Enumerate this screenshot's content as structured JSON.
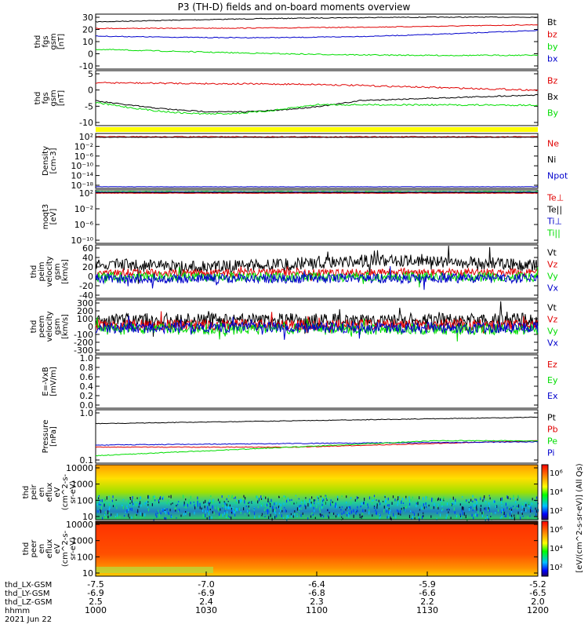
{
  "colors": {
    "black": "#000000",
    "red": "#e00000",
    "green": "#00dd00",
    "blue": "#0000cc",
    "yellow": "#ffff00"
  },
  "chart_data": {
    "type": "line",
    "title": "P3 (TH-D) fields and on-board moments overview",
    "date": "2021 Jun 22",
    "x_axis": {
      "rows": [
        {
          "label": "thd_LX-GSM",
          "values": [
            "-7.5",
            "-7.0",
            "-6.4",
            "-5.9",
            "-5.2"
          ]
        },
        {
          "label": "thd_LY-GSM",
          "values": [
            "-6.9",
            "-6.9",
            "-6.8",
            "-6.6",
            "-6.5"
          ]
        },
        {
          "label": "thd_LZ-GSM",
          "values": [
            "2.5",
            "2.4",
            "2.3",
            "2.2",
            "2.0"
          ]
        },
        {
          "label": "hhmm",
          "values": [
            "1000",
            "1030",
            "1100",
            "1130",
            "1200"
          ]
        }
      ]
    },
    "colorbar_label": "[eV/(cm^2-s-sr-eV)] (All Qs)",
    "panels": [
      {
        "ylabel": [
          "thd",
          "fgs",
          "gsm",
          "[nT]"
        ],
        "yticks": [
          "30",
          "20",
          "10",
          "0",
          "-10"
        ],
        "legend": [
          {
            "name": "Bt",
            "color": "#000000"
          },
          {
            "name": "bz",
            "color": "#e00000"
          },
          {
            "name": "by",
            "color": "#00dd00"
          },
          {
            "name": "bx",
            "color": "#0000cc"
          }
        ]
      },
      {
        "ylabel": [
          "thd",
          "fgs",
          "gsm",
          "[nT]"
        ],
        "yticks": [
          "5",
          "0",
          "-5",
          "-10"
        ],
        "legend": [
          {
            "name": "Bz",
            "color": "#e00000"
          },
          {
            "name": "Bx",
            "color": "#000000"
          },
          {
            "name": "By",
            "color": "#00dd00"
          }
        ]
      },
      {
        "ylabel": [
          "Density",
          "[cm-3]"
        ],
        "yticks": [
          "10²",
          "10⁻²",
          "10⁻⁶",
          "10⁻¹⁰",
          "10⁻¹⁴",
          "10⁻¹⁸"
        ],
        "legend": [
          {
            "name": "Ne",
            "color": "#e00000"
          },
          {
            "name": "Ni",
            "color": "#000000"
          },
          {
            "name": "Npot",
            "color": "#0000cc"
          }
        ]
      },
      {
        "ylabel": [
          "moqt3",
          "[eV]"
        ],
        "yticks": [
          "10²",
          "10⁻²",
          "10⁻⁶",
          "10⁻¹⁰"
        ],
        "legend": [
          {
            "name": "Te⊥",
            "color": "#e00000"
          },
          {
            "name": "Te||",
            "color": "#000000"
          },
          {
            "name": "Ti⊥",
            "color": "#0000cc"
          },
          {
            "name": "Ti||",
            "color": "#00dd00"
          }
        ]
      },
      {
        "ylabel": [
          "thd",
          "peim",
          "velocity",
          "gsm",
          "[km/s]"
        ],
        "yticks": [
          "60",
          "40",
          "20",
          "0",
          "-20",
          "-40"
        ],
        "legend": [
          {
            "name": "Vt",
            "color": "#000000"
          },
          {
            "name": "Vz",
            "color": "#e00000"
          },
          {
            "name": "Vy",
            "color": "#00dd00"
          },
          {
            "name": "Vx",
            "color": "#0000cc"
          }
        ]
      },
      {
        "ylabel": [
          "thd",
          "peem",
          "velocity",
          "gsm",
          "[km/s]"
        ],
        "yticks": [
          "300",
          "200",
          "100",
          "0",
          "-100",
          "-200",
          "-300"
        ],
        "legend": [
          {
            "name": "Vt",
            "color": "#000000"
          },
          {
            "name": "Vz",
            "color": "#e00000"
          },
          {
            "name": "Vy",
            "color": "#00dd00"
          },
          {
            "name": "Vx",
            "color": "#0000cc"
          }
        ]
      },
      {
        "ylabel": [
          "E=-VxB",
          "[mV/m]"
        ],
        "yticks": [
          "1.0",
          "0.8",
          "0.6",
          "0.4",
          "0.2",
          "0.0"
        ],
        "legend": [
          {
            "name": "Ez",
            "color": "#e00000"
          },
          {
            "name": "Ey",
            "color": "#00dd00"
          },
          {
            "name": "Ex",
            "color": "#0000cc"
          }
        ]
      },
      {
        "ylabel": [
          "Pressure",
          "[nPa]"
        ],
        "yticks": [
          "1.0",
          "0.1"
        ],
        "legend": [
          {
            "name": "Pt",
            "color": "#000000"
          },
          {
            "name": "Pb",
            "color": "#e00000"
          },
          {
            "name": "Pe",
            "color": "#00dd00"
          },
          {
            "name": "Pi",
            "color": "#0000cc"
          }
        ]
      },
      {
        "ylabel": [
          "thd",
          "peir",
          "en",
          "eflux",
          "eV",
          "(cm^2-s-",
          "sr-eV)"
        ],
        "yticks": [
          "10000",
          "1000",
          "100",
          "10"
        ],
        "colorbar": [
          "10⁶",
          "10⁴",
          "10²"
        ]
      },
      {
        "ylabel": [
          "thd",
          "peer",
          "en",
          "eflux",
          "eV",
          "(cm^2-s-",
          "sr-eV)"
        ],
        "yticks": [
          "10000",
          "1000",
          "100",
          "10"
        ],
        "colorbar": [
          "10⁶",
          "10⁴",
          "10²"
        ]
      }
    ]
  }
}
